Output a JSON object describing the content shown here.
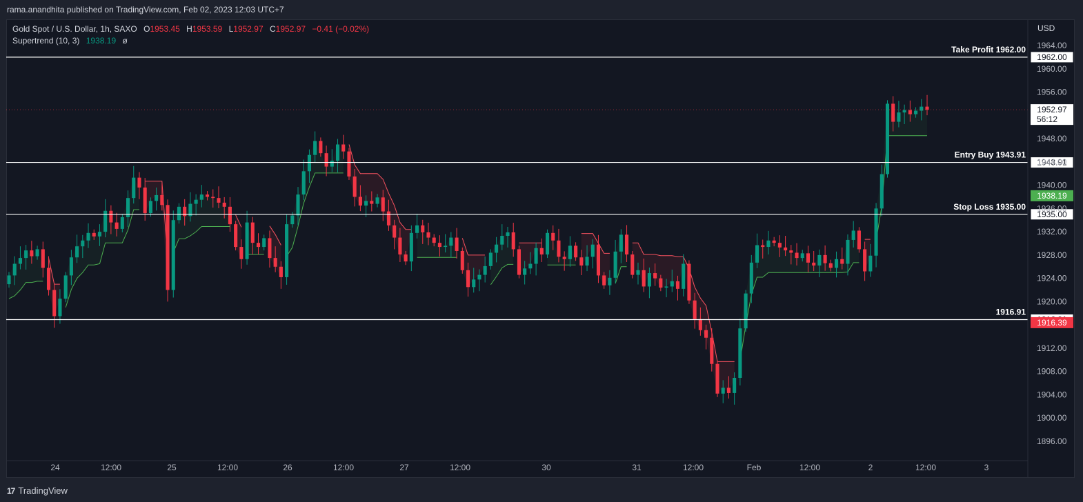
{
  "header": {
    "publisher_text": "rama.anandhita published on TradingView.com, Feb 02, 2023 12:03 UTC+7"
  },
  "legend": {
    "symbol": "Gold Spot / U.S. Dollar, 1h, SAXO",
    "o_label": "O",
    "o_value": "1953.45",
    "h_label": "H",
    "h_value": "1953.59",
    "l_label": "L",
    "l_value": "1952.97",
    "c_label": "C",
    "c_value": "1952.97",
    "change": "−0.41 (−0.02%)",
    "indicator": "Supertrend (10, 3)",
    "indicator_value": "1938.19",
    "indicator_symbol": "ø"
  },
  "currency": "USD",
  "footer": {
    "brand": "TradingView",
    "logo_mark": "17"
  },
  "colors": {
    "background": "#131722",
    "bull": "#089981",
    "bear": "#f23645",
    "supertrend_up": "#4caf50",
    "supertrend_down": "#f7525f",
    "level_line": "#ffffff"
  },
  "chart_data": {
    "type": "candlestick",
    "symbol": "XAUUSD",
    "timeframe": "1h",
    "ylim": [
      1893,
      1966
    ],
    "y_ticks": [
      "1896.00",
      "1900.00",
      "1904.00",
      "1908.00",
      "1912.00",
      "1916.00",
      "1920.00",
      "1924.00",
      "1928.00",
      "1932.00",
      "1936.00",
      "1940.00",
      "1944.00",
      "1948.00",
      "1952.00",
      "1956.00",
      "1960.00",
      "1964.00"
    ],
    "x_ticks": [
      "24",
      "12:00",
      "25",
      "12:00",
      "26",
      "12:00",
      "27",
      "12:00",
      "30",
      "31",
      "12:00",
      "Feb",
      "12:00",
      "2",
      "12:00",
      "3"
    ],
    "horizontal_levels": [
      {
        "label": "Take Profit 1962.00",
        "price": 1962.0,
        "tag": "1962.00"
      },
      {
        "label": "Entry Buy 1943.91",
        "price": 1943.91,
        "tag": "1943.91"
      },
      {
        "label": "Stop Loss 1935.00",
        "price": 1935.0,
        "tag": "1935.00"
      },
      {
        "label": "1916.91",
        "price": 1916.91,
        "tag": "1916.91"
      }
    ],
    "price_tags": [
      {
        "name": "last",
        "text": "1952.97",
        "sub": "56:12",
        "price": 1952.97
      },
      {
        "name": "supertrend",
        "text": "1938.19",
        "price": 1938.19,
        "color": "#4caf50"
      },
      {
        "name": "low",
        "text": "1916.39",
        "price": 1916.39,
        "color": "#f23645"
      }
    ],
    "price_close_series": [
      1924.5,
      1926.5,
      1927.5,
      1928.8,
      1927.8,
      1929.0,
      1925.8,
      1922.0,
      1917.5,
      1920.5,
      1924.5,
      1927.6,
      1929.5,
      1930.5,
      1931.8,
      1931.2,
      1932.0,
      1935.6,
      1933.6,
      1932.5,
      1934.5,
      1937.8,
      1941.3,
      1939.6,
      1935.2,
      1937.3,
      1938.3,
      1936.6,
      1922.0,
      1934.0,
      1936.3,
      1934.7,
      1936.8,
      1937.5,
      1938.4,
      1938.0,
      1937.8,
      1937.0,
      1936.3,
      1933.3,
      1929.4,
      1927.3,
      1933.6,
      1930.1,
      1929.4,
      1930.9,
      1927.5,
      1926.0,
      1924.2,
      1933.3,
      1934.8,
      1938.4,
      1942.4,
      1945.2,
      1947.6,
      1945.5,
      1943.2,
      1944.2,
      1947.0,
      1945.8,
      1941.5,
      1938.0,
      1936.5,
      1937.3,
      1936.8,
      1937.9,
      1935.5,
      1933.1,
      1931.0,
      1928.1,
      1926.9,
      1931.8,
      1933.1,
      1931.9,
      1931.0,
      1930.1,
      1929.4,
      1929.6,
      1931.0,
      1928.7,
      1925.4,
      1922.5,
      1923.8,
      1924.6,
      1926.1,
      1928.4,
      1929.8,
      1931.3,
      1931.9,
      1929.0,
      1924.6,
      1925.7,
      1926.5,
      1929.2,
      1928.1,
      1931.8,
      1930.5,
      1927.7,
      1927.3,
      1929.6,
      1927.6,
      1926.2,
      1927.7,
      1929.8,
      1924.5,
      1922.8,
      1924.1,
      1928.6,
      1931.5,
      1928.1,
      1924.6,
      1925.4,
      1922.6,
      1924.9,
      1924.0,
      1922.4,
      1922.6,
      1923.5,
      1922.2,
      1926.5,
      1920.2,
      1917.0,
      1915.1,
      1913.8,
      1909.3,
      1904.2,
      1905.2,
      1904.3,
      1906.9,
      1915.4,
      1921.4,
      1926.7,
      1929.7,
      1929.4,
      1930.5,
      1930.1,
      1929.3,
      1928.8,
      1928.4,
      1927.5,
      1928.3,
      1926.7,
      1926.2,
      1928.0,
      1926.6,
      1925.8,
      1927.3,
      1926.5,
      1930.6,
      1932.2,
      1929.0,
      1925.2,
      1927.9,
      1936.0,
      1941.9,
      1954.0,
      1950.9,
      1952.5,
      1952.9,
      1952.2,
      1952.8,
      1953.5,
      1952.97
    ],
    "supertrend_value": 1938.19
  }
}
